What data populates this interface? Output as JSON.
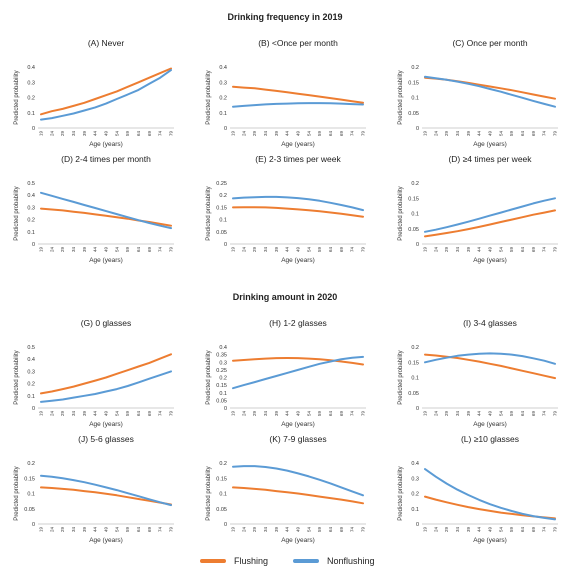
{
  "sections": {
    "title_2019": "Drinking frequency in 2019",
    "title_2020": "Drinking amount in 2020"
  },
  "colors": {
    "flushing": "#ED7D31",
    "nonflushing": "#5B9BD5"
  },
  "legend": {
    "flushing": "Flushing",
    "nonflushing": "Nonflushing"
  },
  "chart_data": [
    {
      "type": "line",
      "title": "(A) Never",
      "xlabel": "Age (years)",
      "ylabel": "Predicted probability",
      "x": [
        19,
        24,
        29,
        34,
        39,
        44,
        49,
        54,
        59,
        64,
        69,
        74,
        79
      ],
      "yticks": [
        "0",
        "0.1",
        "0.2",
        "0.3",
        "0.4"
      ],
      "ylim": [
        0,
        0.4
      ],
      "series": [
        {
          "name": "Flushing",
          "values": [
            0.09,
            0.11,
            0.125,
            0.145,
            0.165,
            0.19,
            0.215,
            0.24,
            0.27,
            0.3,
            0.33,
            0.36,
            0.39
          ]
        },
        {
          "name": "Nonflushing",
          "values": [
            0.055,
            0.065,
            0.08,
            0.095,
            0.115,
            0.135,
            0.16,
            0.19,
            0.22,
            0.25,
            0.29,
            0.33,
            0.38
          ]
        }
      ]
    },
    {
      "type": "line",
      "title": "(B) <Once per month",
      "xlabel": "Age (years)",
      "ylabel": "Predicted probability",
      "x": [
        19,
        24,
        29,
        34,
        39,
        44,
        49,
        54,
        59,
        64,
        69,
        74,
        79
      ],
      "yticks": [
        "0",
        "0.1",
        "0.2",
        "0.3",
        "0.4"
      ],
      "ylim": [
        0,
        0.4
      ],
      "series": [
        {
          "name": "Flushing",
          "values": [
            0.27,
            0.265,
            0.26,
            0.252,
            0.243,
            0.234,
            0.225,
            0.216,
            0.206,
            0.196,
            0.186,
            0.176,
            0.165
          ]
        },
        {
          "name": "Nonflushing",
          "values": [
            0.14,
            0.145,
            0.15,
            0.155,
            0.158,
            0.16,
            0.162,
            0.163,
            0.163,
            0.162,
            0.16,
            0.157,
            0.154
          ]
        }
      ]
    },
    {
      "type": "line",
      "title": "(C) Once per month",
      "xlabel": "Age (years)",
      "ylabel": "Predicted probability",
      "x": [
        19,
        24,
        29,
        34,
        39,
        44,
        49,
        54,
        59,
        64,
        69,
        74,
        79
      ],
      "yticks": [
        "0",
        "0.05",
        "0.1",
        "0.15",
        "0.2"
      ],
      "ylim": [
        0,
        0.2
      ],
      "series": [
        {
          "name": "Flushing",
          "values": [
            0.165,
            0.162,
            0.158,
            0.153,
            0.148,
            0.142,
            0.136,
            0.13,
            0.124,
            0.117,
            0.11,
            0.103,
            0.096
          ]
        },
        {
          "name": "Nonflushing",
          "values": [
            0.168,
            0.163,
            0.158,
            0.152,
            0.145,
            0.137,
            0.128,
            0.119,
            0.109,
            0.099,
            0.089,
            0.079,
            0.07
          ]
        }
      ]
    },
    {
      "type": "line",
      "title": "(D) 2-4 times per month",
      "xlabel": "Age (years)",
      "ylabel": "Predicted probability",
      "x": [
        19,
        24,
        29,
        34,
        39,
        44,
        49,
        54,
        59,
        64,
        69,
        74,
        79
      ],
      "yticks": [
        "0",
        "0.1",
        "0.2",
        "0.3",
        "0.4",
        "0.5"
      ],
      "ylim": [
        0,
        0.5
      ],
      "series": [
        {
          "name": "Flushing",
          "values": [
            0.29,
            0.283,
            0.275,
            0.265,
            0.255,
            0.243,
            0.232,
            0.22,
            0.207,
            0.193,
            0.18,
            0.165,
            0.15
          ]
        },
        {
          "name": "Nonflushing",
          "values": [
            0.42,
            0.395,
            0.37,
            0.345,
            0.32,
            0.295,
            0.27,
            0.245,
            0.22,
            0.195,
            0.172,
            0.15,
            0.13
          ]
        }
      ]
    },
    {
      "type": "line",
      "title": "(E) 2-3 times per week",
      "xlabel": "Age (years)",
      "ylabel": "Predicted probability",
      "x": [
        19,
        24,
        29,
        34,
        39,
        44,
        49,
        54,
        59,
        64,
        69,
        74,
        79
      ],
      "yticks": [
        "0",
        "0.05",
        "0.1",
        "0.15",
        "0.2",
        "0.25"
      ],
      "ylim": [
        0,
        0.25
      ],
      "series": [
        {
          "name": "Flushing",
          "values": [
            0.15,
            0.151,
            0.151,
            0.15,
            0.148,
            0.145,
            0.142,
            0.138,
            0.134,
            0.129,
            0.124,
            0.118,
            0.112
          ]
        },
        {
          "name": "Nonflushing",
          "values": [
            0.187,
            0.19,
            0.192,
            0.193,
            0.193,
            0.191,
            0.188,
            0.183,
            0.177,
            0.169,
            0.16,
            0.15,
            0.139
          ]
        }
      ]
    },
    {
      "type": "line",
      "title": "(D) ≥4 times per week",
      "xlabel": "Age (years)",
      "ylabel": "Predicted probability",
      "x": [
        19,
        24,
        29,
        34,
        39,
        44,
        49,
        54,
        59,
        64,
        69,
        74,
        79
      ],
      "yticks": [
        "0",
        "0.05",
        "0.1",
        "0.15",
        "0.2"
      ],
      "ylim": [
        0,
        0.2
      ],
      "series": [
        {
          "name": "Flushing",
          "values": [
            0.025,
            0.03,
            0.036,
            0.042,
            0.049,
            0.056,
            0.064,
            0.072,
            0.08,
            0.088,
            0.096,
            0.103,
            0.11
          ]
        },
        {
          "name": "Nonflushing",
          "values": [
            0.04,
            0.047,
            0.055,
            0.064,
            0.073,
            0.083,
            0.093,
            0.103,
            0.113,
            0.123,
            0.133,
            0.142,
            0.15
          ]
        }
      ]
    },
    {
      "type": "line",
      "title": "(G) 0 glasses",
      "xlabel": "Age (years)",
      "ylabel": "Predicted probability",
      "x": [
        19,
        24,
        29,
        34,
        39,
        44,
        49,
        54,
        59,
        64,
        69,
        74,
        79
      ],
      "yticks": [
        "0",
        "0.1",
        "0.2",
        "0.3",
        "0.4",
        "0.5"
      ],
      "ylim": [
        0,
        0.5
      ],
      "series": [
        {
          "name": "Flushing",
          "values": [
            0.12,
            0.135,
            0.155,
            0.175,
            0.2,
            0.225,
            0.25,
            0.28,
            0.31,
            0.34,
            0.37,
            0.405,
            0.44
          ]
        },
        {
          "name": "Nonflushing",
          "values": [
            0.05,
            0.06,
            0.07,
            0.085,
            0.1,
            0.115,
            0.135,
            0.155,
            0.18,
            0.21,
            0.24,
            0.27,
            0.3
          ]
        }
      ]
    },
    {
      "type": "line",
      "title": "(H) 1-2 glasses",
      "xlabel": "Age (years)",
      "ylabel": "Predicted probability",
      "x": [
        19,
        24,
        29,
        34,
        39,
        44,
        49,
        54,
        59,
        64,
        69,
        74,
        79
      ],
      "yticks": [
        "0",
        "0.05",
        "0.1",
        "0.15",
        "0.2",
        "0.25",
        "0.3",
        "0.35",
        "0.4"
      ],
      "ylim": [
        0,
        0.4
      ],
      "series": [
        {
          "name": "Flushing",
          "values": [
            0.31,
            0.315,
            0.32,
            0.324,
            0.327,
            0.328,
            0.327,
            0.324,
            0.32,
            0.313,
            0.305,
            0.296,
            0.285
          ]
        },
        {
          "name": "Nonflushing",
          "values": [
            0.13,
            0.15,
            0.17,
            0.19,
            0.21,
            0.23,
            0.25,
            0.27,
            0.29,
            0.305,
            0.32,
            0.33,
            0.335
          ]
        }
      ]
    },
    {
      "type": "line",
      "title": "(I) 3-4 glasses",
      "xlabel": "Age (years)",
      "ylabel": "Predicted probability",
      "x": [
        19,
        24,
        29,
        34,
        39,
        44,
        49,
        54,
        59,
        64,
        69,
        74,
        79
      ],
      "yticks": [
        "0",
        "0.05",
        "0.1",
        "0.15",
        "0.2"
      ],
      "ylim": [
        0,
        0.2
      ],
      "series": [
        {
          "name": "Flushing",
          "values": [
            0.175,
            0.172,
            0.168,
            0.164,
            0.158,
            0.152,
            0.145,
            0.138,
            0.13,
            0.122,
            0.114,
            0.106,
            0.098
          ]
        },
        {
          "name": "Nonflushing",
          "values": [
            0.15,
            0.158,
            0.165,
            0.171,
            0.175,
            0.178,
            0.179,
            0.178,
            0.175,
            0.17,
            0.163,
            0.155,
            0.145
          ]
        }
      ]
    },
    {
      "type": "line",
      "title": "(J) 5-6 glasses",
      "xlabel": "Age (years)",
      "ylabel": "Predicted probability",
      "x": [
        19,
        24,
        29,
        34,
        39,
        44,
        49,
        54,
        59,
        64,
        69,
        74,
        79
      ],
      "yticks": [
        "0",
        "0.05",
        "0.1",
        "0.15",
        "0.2"
      ],
      "ylim": [
        0,
        0.2
      ],
      "series": [
        {
          "name": "Flushing",
          "values": [
            0.12,
            0.118,
            0.115,
            0.112,
            0.108,
            0.104,
            0.099,
            0.094,
            0.088,
            0.082,
            0.076,
            0.07,
            0.064
          ]
        },
        {
          "name": "Nonflushing",
          "values": [
            0.158,
            0.155,
            0.15,
            0.144,
            0.137,
            0.129,
            0.12,
            0.111,
            0.101,
            0.091,
            0.081,
            0.071,
            0.062
          ]
        }
      ]
    },
    {
      "type": "line",
      "title": "(K) 7-9 glasses",
      "xlabel": "Age (years)",
      "ylabel": "Predicted probability",
      "x": [
        19,
        24,
        29,
        34,
        39,
        44,
        49,
        54,
        59,
        64,
        69,
        74,
        79
      ],
      "yticks": [
        "0",
        "0.05",
        "0.1",
        "0.15",
        "0.2"
      ],
      "ylim": [
        0,
        0.2
      ],
      "series": [
        {
          "name": "Flushing",
          "values": [
            0.12,
            0.118,
            0.115,
            0.112,
            0.108,
            0.104,
            0.1,
            0.095,
            0.09,
            0.085,
            0.08,
            0.074,
            0.068
          ]
        },
        {
          "name": "Nonflushing",
          "values": [
            0.188,
            0.19,
            0.19,
            0.187,
            0.182,
            0.175,
            0.166,
            0.156,
            0.145,
            0.133,
            0.12,
            0.107,
            0.094
          ]
        }
      ]
    },
    {
      "type": "line",
      "title": "(L) ≥10 glasses",
      "xlabel": "Age (years)",
      "ylabel": "Predicted probability",
      "x": [
        19,
        24,
        29,
        34,
        39,
        44,
        49,
        54,
        59,
        64,
        69,
        74,
        79
      ],
      "yticks": [
        "0",
        "0.1",
        "0.2",
        "0.3",
        "0.4"
      ],
      "ylim": [
        0,
        0.4
      ],
      "series": [
        {
          "name": "Flushing",
          "values": [
            0.18,
            0.16,
            0.142,
            0.126,
            0.111,
            0.098,
            0.086,
            0.075,
            0.066,
            0.057,
            0.05,
            0.043,
            0.037
          ]
        },
        {
          "name": "Nonflushing",
          "values": [
            0.36,
            0.31,
            0.265,
            0.225,
            0.19,
            0.158,
            0.13,
            0.106,
            0.085,
            0.067,
            0.052,
            0.04,
            0.03
          ]
        }
      ]
    }
  ]
}
